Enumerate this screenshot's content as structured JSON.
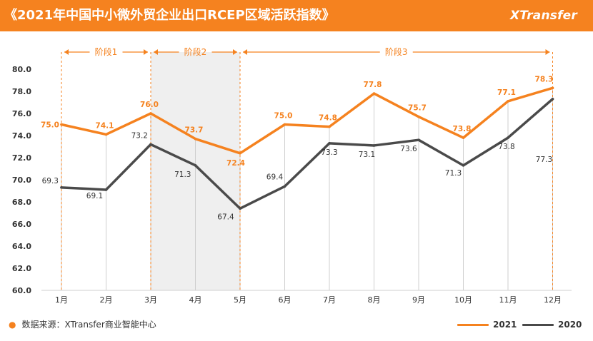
{
  "header": {
    "title": "《2021年中国中小微外贸企业出口RCEP区域活跃指数》",
    "brand": "XTransfer"
  },
  "footer": {
    "source": "数据来源：XTransfer商业智能中心"
  },
  "colors": {
    "accent": "#F5821F",
    "series_2021": "#F5821F",
    "series_2020": "#4A4A4A",
    "stage_shade": "#EFEFEF"
  },
  "chart_data": {
    "type": "line",
    "title": "2021年中国中小微外贸企业出口RCEP区域活跃指数",
    "categories": [
      "1月",
      "2月",
      "3月",
      "4月",
      "5月",
      "6月",
      "7月",
      "8月",
      "9月",
      "10月",
      "11月",
      "12月"
    ],
    "yticks": [
      "60.0",
      "62.0",
      "64.0",
      "66.0",
      "68.0",
      "70.0",
      "72.0",
      "74.0",
      "76.0",
      "78.0",
      "80.0"
    ],
    "ylim": [
      60,
      80
    ],
    "grid": "vertical",
    "legend": "bottom-right",
    "series": [
      {
        "name": "2021",
        "values": [
          75.0,
          74.1,
          76.0,
          73.7,
          72.4,
          75.0,
          74.8,
          77.8,
          75.7,
          73.8,
          77.1,
          78.3
        ],
        "labels": [
          "75.0",
          "74.1",
          "76.0",
          "73.7",
          "72.4",
          "75.0",
          "74.8",
          "77.8",
          "75.7",
          "73.8",
          "77.1",
          "78.3"
        ]
      },
      {
        "name": "2020",
        "values": [
          69.3,
          69.1,
          73.2,
          71.3,
          67.4,
          69.4,
          73.3,
          73.1,
          73.6,
          71.3,
          73.8,
          77.3
        ],
        "labels": [
          "69.3",
          "69.1",
          "73.2",
          "71.3",
          "67.4",
          "69.4",
          "73.3",
          "73.1",
          "73.6",
          "71.3",
          "73.8",
          "77.3"
        ]
      }
    ],
    "stages": [
      {
        "label": "阶段1",
        "from": 0,
        "to": 2,
        "shaded": false
      },
      {
        "label": "阶段2",
        "from": 2,
        "to": 4,
        "shaded": true
      },
      {
        "label": "阶段3",
        "from": 4,
        "to": 11,
        "shaded": false
      }
    ]
  }
}
